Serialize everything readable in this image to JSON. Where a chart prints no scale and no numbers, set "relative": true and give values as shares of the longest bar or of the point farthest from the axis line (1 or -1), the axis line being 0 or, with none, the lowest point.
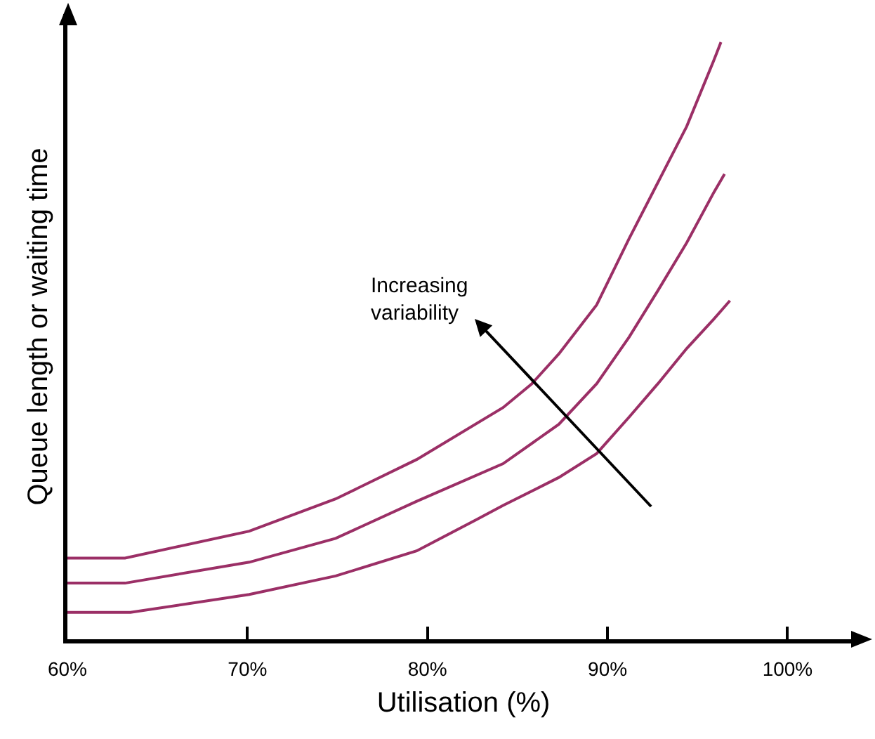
{
  "chart_data": {
    "type": "line",
    "xlabel": "Utilisation (%)",
    "ylabel": "Queue length or waiting time",
    "relative": true,
    "xlim": [
      60,
      104
    ],
    "xticks": [
      {
        "value": 60,
        "label": "60%"
      },
      {
        "value": 70,
        "label": "70%"
      },
      {
        "value": 80,
        "label": "80%"
      },
      {
        "value": 90,
        "label": "90%"
      },
      {
        "value": 100,
        "label": "100%"
      }
    ],
    "annotations": [
      "Increasing\nvariability"
    ],
    "series": [
      {
        "color": "#9b2f66",
        "x": [
          60,
          63.2,
          70.1,
          74.9,
          79.4,
          84.2,
          85.8,
          87.3,
          89.4,
          91.2,
          92.8,
          94.4,
          95.9,
          96.3
        ],
        "values": [
          0.136,
          0.136,
          0.181,
          0.235,
          0.301,
          0.388,
          0.428,
          0.478,
          0.56,
          0.671,
          0.765,
          0.859,
          0.969,
          1
        ]
      },
      {
        "color": "#9b2f66",
        "x": [
          60,
          63.2,
          70.1,
          74.9,
          79.4,
          84.2,
          87.3,
          89.4,
          91.2,
          92.8,
          94.4,
          95.9,
          96.5
        ],
        "values": [
          0.094,
          0.094,
          0.129,
          0.169,
          0.231,
          0.294,
          0.36,
          0.428,
          0.506,
          0.584,
          0.664,
          0.748,
          0.779
        ]
      },
      {
        "color": "#9b2f66",
        "x": [
          60,
          63.5,
          70.1,
          74.9,
          79.4,
          82.7,
          84.2,
          87.3,
          89.4,
          91.2,
          92.8,
          94.4,
          95.9,
          96.8
        ],
        "values": [
          0.045,
          0.045,
          0.075,
          0.106,
          0.148,
          0.2,
          0.224,
          0.271,
          0.311,
          0.372,
          0.428,
          0.487,
          0.536,
          0.567
        ]
      }
    ]
  }
}
